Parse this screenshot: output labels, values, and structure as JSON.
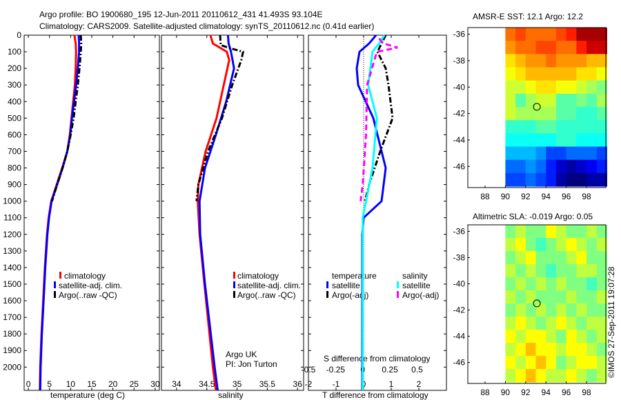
{
  "title": {
    "line1": "Argo profile: BO 1900680_195 12-Jun-2011 20110612_431 41.493S 93.104E",
    "line2": "Climatology: CARS2009. Satellite-adjusted climatology: synTS_20110612.nc (0.41d earlier)"
  },
  "copyright": "©IMOS 27-Sep-2011 19:07:28",
  "colors": {
    "climatology": "#ff0000",
    "satellite": "#0000ff",
    "argo": "#000000",
    "s_satellite": "#00ffff",
    "s_argo": "#ff00ff"
  },
  "chart_data": [
    {
      "type": "line",
      "id": "temperature",
      "xlabel": "temperature (deg C)",
      "ylabel": "depth",
      "xlim": [
        -1,
        31
      ],
      "ylim": [
        0,
        2140
      ],
      "xticks": [
        0,
        5,
        10,
        15,
        20,
        25,
        30
      ],
      "yticks": [
        0,
        100,
        200,
        300,
        400,
        500,
        600,
        700,
        800,
        900,
        1000,
        1100,
        1200,
        1300,
        1400,
        1500,
        1600,
        1700,
        1800,
        1900,
        2000
      ],
      "legend": [
        "climatology",
        "satellite-adj. clim.",
        "Argo(..raw -QC)"
      ],
      "series": [
        {
          "name": "climatology",
          "depth": [
            0,
            50,
            100,
            200,
            300,
            400,
            500,
            600,
            700,
            800,
            900,
            1000,
            1100,
            1200,
            1400,
            1600,
            1800,
            2000,
            2140
          ],
          "values": [
            10.9,
            11.2,
            11.3,
            11.2,
            11.0,
            10.6,
            10.2,
            9.8,
            9.2,
            8.0,
            6.7,
            5.4,
            4.8,
            4.4,
            3.9,
            3.5,
            3.1,
            2.8,
            2.7
          ]
        },
        {
          "name": "satellite-adj. clim.",
          "depth": [
            0,
            50,
            100,
            200,
            300,
            400,
            500,
            600,
            700,
            800,
            900,
            1000,
            1100,
            1200,
            1400,
            1600,
            1800,
            2000,
            2140
          ],
          "values": [
            11.9,
            12.0,
            12.0,
            11.7,
            11.3,
            10.8,
            10.3,
            9.9,
            9.2,
            8.1,
            6.8,
            5.5,
            4.9,
            4.5,
            4.0,
            3.6,
            3.2,
            2.9,
            2.8
          ]
        },
        {
          "name": "Argo(..raw -QC)",
          "depth": [
            0,
            50,
            100,
            200,
            300,
            400,
            500,
            600,
            700,
            800,
            900,
            1000
          ],
          "values": [
            12.4,
            12.5,
            12.4,
            12.1,
            11.7,
            11.2,
            10.7,
            10.0,
            9.2,
            8.1,
            6.8,
            5.6
          ]
        }
      ]
    },
    {
      "type": "line",
      "id": "salinity",
      "xlabel": "salinity",
      "xlim": [
        33.75,
        36.1
      ],
      "ylim": [
        0,
        2140
      ],
      "xticks": [
        34,
        34.5,
        35,
        35.5,
        36
      ],
      "legend": [
        "climatology",
        "satellite-adj. clim.",
        "Argo(..raw -QC)"
      ],
      "annotation": [
        "Argo UK",
        "PI: Jon Turton"
      ],
      "series": [
        {
          "name": "climatology",
          "depth": [
            0,
            50,
            100,
            150,
            300,
            500,
            700,
            900,
            1000,
            1200,
            1500,
            2000,
            2140
          ],
          "values": [
            34.56,
            34.6,
            34.83,
            34.87,
            34.78,
            34.66,
            34.48,
            34.36,
            34.35,
            34.38,
            34.46,
            34.6,
            34.65
          ]
        },
        {
          "name": "satellite-adj. clim.",
          "depth": [
            0,
            50,
            100,
            200,
            400,
            600,
            800,
            1000,
            1200,
            1500,
            2000,
            2140
          ],
          "values": [
            34.85,
            34.86,
            34.9,
            34.95,
            34.82,
            34.65,
            34.47,
            34.38,
            34.39,
            34.47,
            34.63,
            34.68
          ]
        },
        {
          "name": "Argo(..raw -QC)",
          "depth": [
            0,
            60,
            80,
            100,
            150,
            300,
            500,
            700,
            900,
            1000
          ],
          "values": [
            34.72,
            34.73,
            34.9,
            35.1,
            35.07,
            34.92,
            34.75,
            34.52,
            34.36,
            34.33
          ]
        }
      ]
    },
    {
      "type": "line",
      "id": "differences",
      "xlabel": "T difference from climatology",
      "x2label": "S difference from climatology",
      "xlim": [
        -2.0,
        3.0
      ],
      "x2lim": [
        -0.5,
        0.77
      ],
      "xticks": [
        -2,
        -1,
        0,
        1,
        2
      ],
      "x2ticks": [
        -0.5,
        -0.25,
        0,
        0.25,
        0.5
      ],
      "x2ticklabels": [
        "-0.5",
        "-0.25",
        "0",
        "0.25",
        "0.5"
      ],
      "ylim": [
        0,
        2140
      ],
      "legend_groups": [
        {
          "title": "temperature",
          "items": [
            "satellite",
            "Argo(-adj)"
          ]
        },
        {
          "title": "salinity",
          "items": [
            "satellite",
            "Argo(-adj)"
          ]
        }
      ],
      "series": [
        {
          "name": "T satellite",
          "axis": "T",
          "depth": [
            0,
            50,
            100,
            200,
            300,
            500,
            800,
            1000,
            1100,
            1200,
            2000,
            2140
          ],
          "values": [
            0.45,
            0.2,
            -0.15,
            -0.25,
            -0.2,
            0.35,
            0.8,
            0.65,
            0.0,
            -0.05,
            -0.05,
            -0.05
          ]
        },
        {
          "name": "T Argo(-adj)",
          "axis": "T",
          "depth": [
            0,
            100,
            200,
            300,
            500,
            700,
            900,
            1000
          ],
          "values": [
            0.8,
            0.5,
            0.8,
            0.9,
            1.05,
            0.6,
            0.2,
            0.05
          ]
        },
        {
          "name": "S satellite",
          "axis": "S",
          "depth": [
            0,
            50,
            100,
            300,
            500,
            800,
            1000,
            1100,
            2000,
            2140
          ],
          "values": [
            0.2,
            0.15,
            0.09,
            0.05,
            0.13,
            0.09,
            0.03,
            0.0,
            0.0,
            0.0
          ]
        },
        {
          "name": "S Argo(-adj)",
          "axis": "S",
          "depth": [
            20,
            50,
            75,
            100,
            300,
            600,
            900,
            1000
          ],
          "values": [
            0.15,
            0.19,
            0.32,
            0.13,
            0.04,
            0.03,
            0.0,
            -0.02
          ]
        }
      ]
    },
    {
      "type": "heatmap",
      "id": "sst-map",
      "title": "AMSR-E SST: 12.1 Argo: 12.2",
      "xlim": [
        86.3,
        99.9
      ],
      "ylim": [
        -47.6,
        -35.5
      ],
      "xticks": [
        88,
        90,
        92,
        94,
        96,
        98
      ],
      "yticks": [
        -36,
        -38,
        -40,
        -42,
        -44,
        -46
      ],
      "lon0": 90,
      "lat0": -35.5,
      "cell": 1,
      "crange": [
        6,
        19
      ],
      "marker": {
        "lon": 93.104,
        "lat": -41.493
      },
      "grid": [
        [
          16,
          16.5,
          16,
          16,
          16,
          16.5,
          17,
          18.5,
          18.5,
          18.5
        ],
        [
          15.5,
          16,
          16,
          16.5,
          16.5,
          16,
          16,
          17,
          18,
          18
        ],
        [
          14.5,
          15,
          15.5,
          15.5,
          16,
          15.5,
          15.5,
          15.5,
          15,
          15
        ],
        [
          14,
          14.5,
          15,
          15,
          15,
          15,
          15,
          14.5,
          14.5,
          14
        ],
        [
          13.5,
          13.5,
          14,
          14.5,
          14.5,
          14,
          14,
          13.5,
          13,
          12.5
        ],
        [
          13.5,
          12,
          13,
          13.5,
          13.5,
          12,
          12,
          12.5,
          12,
          13
        ],
        [
          13.5,
          13,
          13,
          13,
          13,
          12,
          12,
          11.5,
          11.5,
          12
        ],
        [
          11.5,
          11.5,
          11.5,
          12,
          12,
          11.5,
          11.5,
          11.5,
          11.5,
          11.5
        ],
        [
          11,
          11,
          11,
          11,
          11,
          11.5,
          11.5,
          11,
          11,
          11
        ],
        [
          10,
          10,
          10,
          9.5,
          8.5,
          8.5,
          9,
          9,
          9,
          8.5
        ],
        [
          9,
          9,
          9.5,
          9,
          8,
          7,
          6.5,
          7,
          7.5,
          8
        ],
        [
          8.5,
          8.5,
          9,
          8.5,
          8,
          6.5,
          6,
          6,
          6.5,
          6.5
        ]
      ]
    },
    {
      "type": "heatmap",
      "id": "sla-map",
      "title": "Altimetric SLA: -0.019 Argo: 0.05",
      "xlim": [
        86.3,
        99.9
      ],
      "ylim": [
        -47.6,
        -35.5
      ],
      "xticks": [
        88,
        90,
        92,
        94,
        96,
        98
      ],
      "yticks": [
        -36,
        -38,
        -40,
        -42,
        -44,
        -46
      ],
      "lon0": 90,
      "lat0": -35.5,
      "cell": 1,
      "crange": [
        -0.4,
        0.4
      ],
      "marker": {
        "lon": 93.104,
        "lat": -41.493
      },
      "grid": [
        [
          0.0,
          0.05,
          0.0,
          0.0,
          0.1,
          0.05,
          0.0,
          0.0,
          0.05,
          0.0
        ],
        [
          0.05,
          0.1,
          0.0,
          -0.05,
          0.0,
          0.05,
          0.1,
          0.05,
          0.0,
          0.05
        ],
        [
          0.0,
          0.05,
          0.1,
          0.0,
          0.0,
          0.0,
          0.05,
          0.1,
          0.0,
          0.0
        ],
        [
          0.05,
          0.0,
          0.05,
          0.0,
          -0.05,
          0.0,
          0.0,
          0.05,
          0.05,
          0.0
        ],
        [
          0.0,
          0.05,
          0.0,
          0.05,
          0.0,
          0.05,
          0.0,
          0.0,
          -0.05,
          0.0
        ],
        [
          0.05,
          0.0,
          0.05,
          0.0,
          0.0,
          0.0,
          0.05,
          0.0,
          0.0,
          0.05
        ],
        [
          0.0,
          0.05,
          0.0,
          0.05,
          0.0,
          0.05,
          0.0,
          0.05,
          0.0,
          0.0
        ],
        [
          0.05,
          0.1,
          0.05,
          0.0,
          0.05,
          0.1,
          0.05,
          0.0,
          0.05,
          0.05
        ],
        [
          0.1,
          0.05,
          0.1,
          0.1,
          0.05,
          0.0,
          0.1,
          0.05,
          0.0,
          0.05
        ],
        [
          0.05,
          0.1,
          0.15,
          0.1,
          0.1,
          0.05,
          0.1,
          0.1,
          0.05,
          0.0
        ],
        [
          0.1,
          0.05,
          0.1,
          0.15,
          0.1,
          0.0,
          0.05,
          0.1,
          0.1,
          0.05
        ],
        [
          0.05,
          0.1,
          0.15,
          0.1,
          0.05,
          0.05,
          0.1,
          0.05,
          0.0,
          0.05
        ]
      ]
    }
  ]
}
